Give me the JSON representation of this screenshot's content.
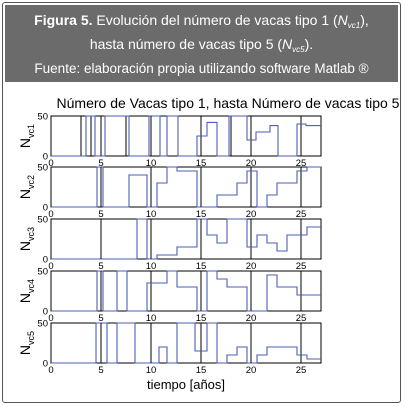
{
  "caption": {
    "figure_label": "Figura 5.",
    "line1_text": " Evolución del número de vacas tipo 1 (",
    "line1_var": "N",
    "line1_sub": "vc1",
    "line1_end": "),",
    "line2_text": "hasta número de vacas tipo 5 (",
    "line2_var": "N",
    "line2_sub": "vc5",
    "line2_end": ").",
    "line3": "Fuente: elaboración propia utilizando software Matlab ®"
  },
  "chart_data": {
    "type": "line",
    "title": "Número de Vacas tipo 1, hasta Número de vacas tipo 5",
    "xlabel": "tiempo [años]",
    "xlim": [
      0,
      27
    ],
    "xticks": [
      0,
      5,
      10,
      15,
      20,
      25
    ],
    "ylim": [
      0,
      50
    ],
    "yticks": [
      0,
      50
    ],
    "colors": {
      "step": "#4a5fb8",
      "vertical": "#000000"
    },
    "panels": [
      {
        "ylabel": "N",
        "ylabel_sub": "vc1",
        "series": [
          {
            "name": "",
            "x": [
              0,
              3.5,
              3.5,
              4.4,
              4.4,
              5.4,
              5.4,
              7.8,
              7.8,
              9.8,
              9.8,
              10.9,
              10.9,
              11.6,
              11.6,
              12.7,
              12.7,
              14.6,
              14.6,
              15.6,
              15.6,
              16.6,
              16.6,
              17.8,
              17.8,
              19.6,
              19.6,
              20.5,
              20.5,
              21.9,
              21.9,
              22.7,
              22.7,
              24.6,
              24.6,
              25.5,
              25.5,
              27
            ],
            "y": [
              0,
              0,
              50,
              50,
              0,
              0,
              50,
              50,
              0,
              0,
              50,
              50,
              0,
              0,
              50,
              50,
              0,
              0,
              25,
              25,
              42,
              42,
              0,
              0,
              50,
              50,
              20,
              20,
              30,
              30,
              38,
              38,
              0,
              0,
              40,
              40,
              38,
              38
            ]
          }
        ],
        "vlines": [
          3,
          4,
          5,
          7.5,
          10,
          12.7,
          15,
          18,
          20,
          25
        ]
      },
      {
        "ylabel": "N",
        "ylabel_sub": "vc2",
        "series": [
          {
            "name": "",
            "x": [
              0,
              4.6,
              4.6,
              5.2,
              5.2,
              7.8,
              7.8,
              9.6,
              9.6,
              10.6,
              10.6,
              11.6,
              11.6,
              12.6,
              12.6,
              14.6,
              14.6,
              16.6,
              16.6,
              18.6,
              18.6,
              19.6,
              19.6,
              20.6,
              20.6,
              21.6,
              21.6,
              22.6,
              22.6,
              24.6,
              24.6,
              25.6,
              25.6,
              27
            ],
            "y": [
              0,
              0,
              50,
              50,
              0,
              0,
              40,
              40,
              0,
              0,
              30,
              30,
              50,
              50,
              45,
              45,
              0,
              0,
              15,
              15,
              30,
              30,
              45,
              45,
              0,
              0,
              15,
              15,
              30,
              30,
              45,
              45,
              50,
              50
            ]
          }
        ],
        "vlines": [
          5,
          10,
          15,
          20,
          25
        ]
      },
      {
        "ylabel": "N",
        "ylabel_sub": "vc3",
        "series": [
          {
            "name": "",
            "x": [
              0,
              8.6,
              8.6,
              9.6,
              9.6,
              10.6,
              10.6,
              12.6,
              12.6,
              14.6,
              14.6,
              15.6,
              15.6,
              16.6,
              16.6,
              17.6,
              17.6,
              19.6,
              19.6,
              20.6,
              20.6,
              21.6,
              21.6,
              22.6,
              22.6,
              23.6,
              23.6,
              25.6,
              25.6,
              27
            ],
            "y": [
              0,
              0,
              50,
              50,
              0,
              0,
              5,
              5,
              15,
              15,
              50,
              50,
              30,
              30,
              20,
              20,
              50,
              50,
              15,
              15,
              30,
              30,
              20,
              20,
              10,
              10,
              30,
              30,
              40,
              40
            ]
          }
        ],
        "vlines": [
          5,
          10,
          15,
          20,
          25
        ]
      },
      {
        "ylabel": "N",
        "ylabel_sub": "vc4",
        "series": [
          {
            "name": "",
            "x": [
              0,
              4.6,
              4.6,
              5.2,
              5.2,
              6.6,
              6.6,
              7.6,
              7.6,
              9.6,
              9.6,
              11.6,
              11.6,
              12.6,
              12.6,
              14.6,
              14.6,
              15.6,
              15.6,
              16.6,
              16.6,
              17.6,
              17.6,
              19.6,
              19.6,
              21.6,
              21.6,
              22.6,
              22.6,
              24.6,
              24.6,
              27
            ],
            "y": [
              0,
              0,
              50,
              50,
              0,
              0,
              50,
              50,
              0,
              0,
              35,
              35,
              50,
              50,
              30,
              30,
              0,
              0,
              50,
              50,
              40,
              40,
              30,
              30,
              0,
              0,
              45,
              45,
              30,
              30,
              20,
              20
            ]
          }
        ],
        "vlines": [
          5,
          10,
          15,
          20,
          25
        ]
      },
      {
        "ylabel": "N",
        "ylabel_sub": "vc5",
        "series": [
          {
            "name": "",
            "x": [
              0,
              4.5,
              4.5,
              5.6,
              5.6,
              6.6,
              6.6,
              8.4,
              8.4,
              10.8,
              10.8,
              11.6,
              11.6,
              12.6,
              12.6,
              14.4,
              14.4,
              15.6,
              15.6,
              16.6,
              16.6,
              17.6,
              17.6,
              18.6,
              18.6,
              19.6,
              19.6,
              20.6,
              20.6,
              21.6,
              21.6,
              24.6,
              24.6,
              25.6,
              25.6,
              27
            ],
            "y": [
              0,
              0,
              50,
              50,
              0,
              0,
              50,
              50,
              0,
              0,
              20,
              20,
              0,
              0,
              50,
              50,
              15,
              15,
              50,
              50,
              0,
              0,
              10,
              10,
              20,
              20,
              0,
              0,
              10,
              10,
              20,
              20,
              10,
              10,
              5,
              5
            ]
          }
        ],
        "vlines": [
          5,
          10,
          15,
          20,
          25
        ]
      }
    ]
  }
}
